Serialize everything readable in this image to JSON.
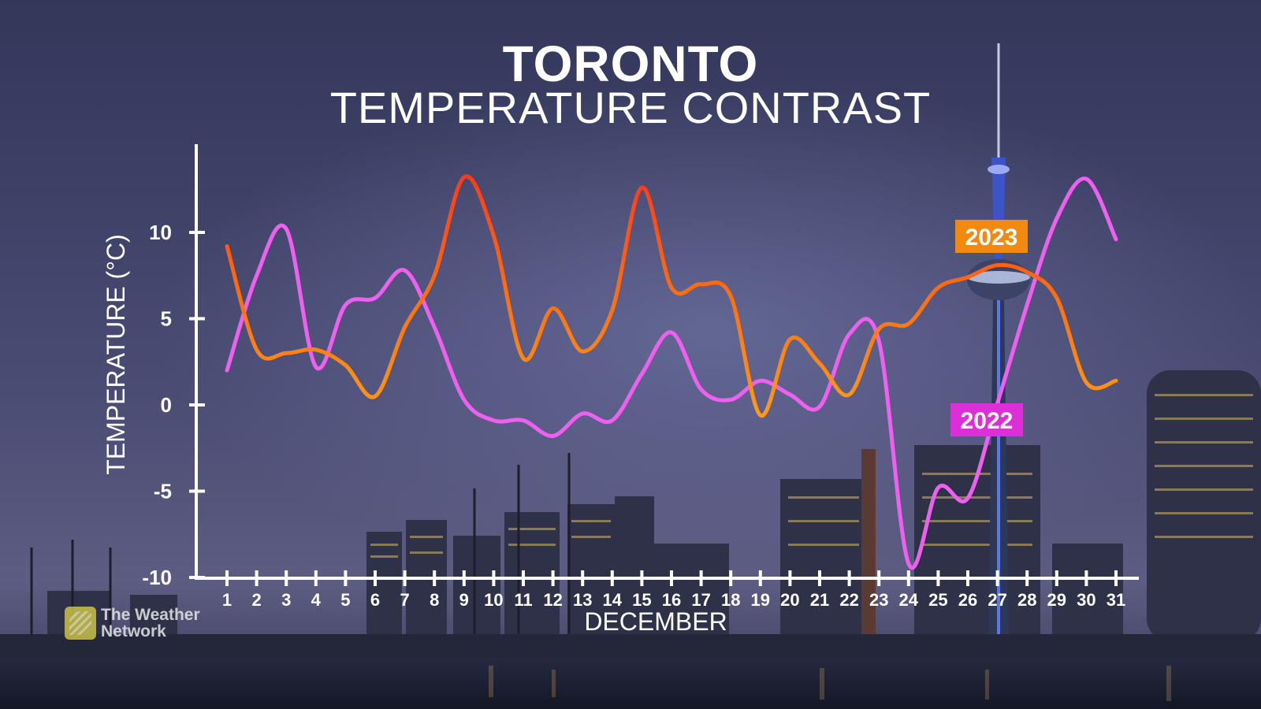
{
  "header": {
    "title": "TORONTO",
    "subtitle": "TEMPERATURE CONTRAST"
  },
  "branding": {
    "logo_text": "The Weather Network"
  },
  "colors": {
    "series_2023": "#ff7a12",
    "series_2022": "#f060f0",
    "label_2023_bg": "#f28a12",
    "label_2022_bg": "#dd2fd8",
    "axis": "#ffffff",
    "background_sky_top": "#3a3e63",
    "background_sky_bottom": "#5a5c84",
    "background_water": "#1c2032"
  },
  "chart_data": {
    "type": "line",
    "title": "TORONTO TEMPERATURE CONTRAST",
    "xlabel": "DECEMBER",
    "ylabel": "TEMPERATURE (°C)",
    "x": [
      1,
      2,
      3,
      4,
      5,
      6,
      7,
      8,
      9,
      10,
      11,
      12,
      13,
      14,
      15,
      16,
      17,
      18,
      19,
      20,
      21,
      22,
      23,
      24,
      25,
      26,
      27,
      28,
      29,
      30,
      31
    ],
    "ylim": [
      -10,
      15
    ],
    "yticks": [
      -10,
      -5,
      0,
      5,
      10
    ],
    "grid": false,
    "legend": "inline labels",
    "series": [
      {
        "name": "2023",
        "values": [
          9.2,
          3.2,
          3.0,
          3.2,
          2.3,
          0.5,
          4.5,
          7.5,
          13.2,
          9.8,
          2.7,
          5.6,
          3.1,
          5.5,
          12.6,
          6.8,
          7.0,
          6.3,
          -0.6,
          3.8,
          2.4,
          0.6,
          4.4,
          4.7,
          6.8,
          7.4,
          8.1,
          7.7,
          6.2,
          1.3,
          1.4
        ]
      },
      {
        "name": "2022",
        "values": [
          2.0,
          7.5,
          10.2,
          2.2,
          5.8,
          6.2,
          7.8,
          4.5,
          0.3,
          -0.9,
          -0.9,
          -1.8,
          -0.5,
          -0.9,
          1.8,
          4.2,
          0.9,
          0.3,
          1.4,
          0.6,
          -0.1,
          4.1,
          3.7,
          -9.2,
          -4.8,
          -5.4,
          0.1,
          5.8,
          10.8,
          13.1,
          9.6
        ]
      }
    ]
  }
}
